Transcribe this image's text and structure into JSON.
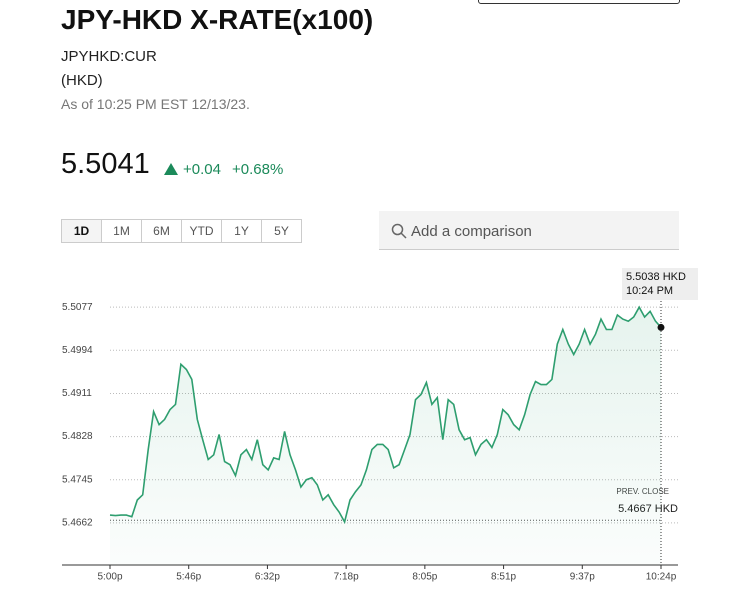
{
  "header": {
    "title": "JPY-HKD X-RATE(x100)",
    "ticker": "JPYHKD:CUR",
    "currency": "(HKD)",
    "as_of": "As of 10:25 PM EST 12/13/23."
  },
  "quote": {
    "price": "5.5041",
    "change": "+0.04",
    "change_pct": "+0.68%"
  },
  "ranges": [
    "1D",
    "1M",
    "6M",
    "YTD",
    "1Y",
    "5Y"
  ],
  "search": {
    "placeholder": "Add a comparison"
  },
  "chart_data": {
    "type": "line",
    "x_labels": [
      "5:00p",
      "5:46p",
      "6:32p",
      "7:18p",
      "8:05p",
      "8:51p",
      "9:37p",
      "10:24p"
    ],
    "values": [
      5.4677,
      5.4676,
      5.4677,
      5.4677,
      5.4674,
      5.4706,
      5.4716,
      5.4803,
      5.4876,
      5.4851,
      5.4861,
      5.488,
      5.489,
      5.4967,
      5.4957,
      5.4938,
      5.4861,
      5.4822,
      5.4784,
      5.4793,
      5.4832,
      5.478,
      5.4774,
      5.4753,
      5.4793,
      5.4803,
      5.4784,
      5.4822,
      5.4774,
      5.4764,
      5.4787,
      5.4784,
      5.4838,
      5.4793,
      5.4764,
      5.4731,
      5.4745,
      5.4749,
      5.4735,
      5.4706,
      5.4716,
      5.4697,
      5.4683,
      5.4664,
      5.4706,
      5.4722,
      5.4735,
      5.4764,
      5.4803,
      5.4813,
      5.4813,
      5.4803,
      5.4768,
      5.4774,
      5.4803,
      5.4832,
      5.4899,
      5.4909,
      5.4932,
      5.489,
      5.4903,
      5.4822,
      5.4899,
      5.489,
      5.4841,
      5.4822,
      5.4826,
      5.4793,
      5.4813,
      5.4822,
      5.4807,
      5.4832,
      5.488,
      5.487,
      5.4851,
      5.4841,
      5.487,
      5.4909,
      5.4934,
      5.4928,
      5.4928,
      5.4938,
      5.5006,
      5.5034,
      5.5006,
      5.4986,
      5.5006,
      5.5034,
      5.5006,
      5.5025,
      5.5054,
      5.5034,
      5.5034,
      5.5062,
      5.5054,
      5.505,
      5.5058,
      5.5077,
      5.5058,
      5.5069,
      5.505,
      5.5038
    ],
    "color": "#2e9e6f",
    "ylim": [
      5.4581,
      5.511
    ],
    "yticks": [
      5.4662,
      5.4745,
      5.4828,
      5.4911,
      5.4994,
      5.5077
    ],
    "grid": true,
    "prev_close": {
      "label": "PREV. CLOSE",
      "value": 5.4667,
      "value_label": "5.4667 HKD"
    },
    "tooltip": {
      "value": 5.5038,
      "value_label": "5.5038 HKD",
      "time": "10:24 PM"
    }
  }
}
